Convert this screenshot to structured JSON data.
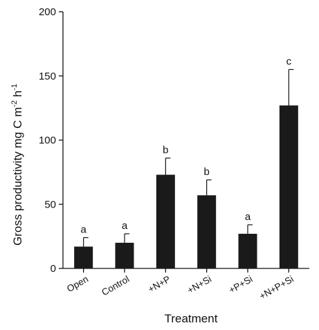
{
  "chart_data": {
    "type": "bar",
    "xlabel": "Treatment",
    "ylabel_main": "Gross productivity mg C m",
    "ylabel_sup1": "-2",
    "ylabel_mid": " h",
    "ylabel_sup2": "-1",
    "ylim": [
      0,
      200
    ],
    "yticks": [
      0,
      50,
      100,
      150,
      200
    ],
    "categories": [
      "Open",
      "Control",
      "+N+P",
      "+N+Si",
      "+P+Si",
      "+N+P+Si"
    ],
    "values": [
      17,
      20,
      73,
      57,
      27,
      127
    ],
    "errors": [
      7,
      7,
      13,
      12,
      7,
      28
    ],
    "significance": [
      "a",
      "a",
      "b",
      "b",
      "a",
      "c"
    ],
    "bar_color": "#1a1a1a",
    "grid": false,
    "legend": "none"
  }
}
